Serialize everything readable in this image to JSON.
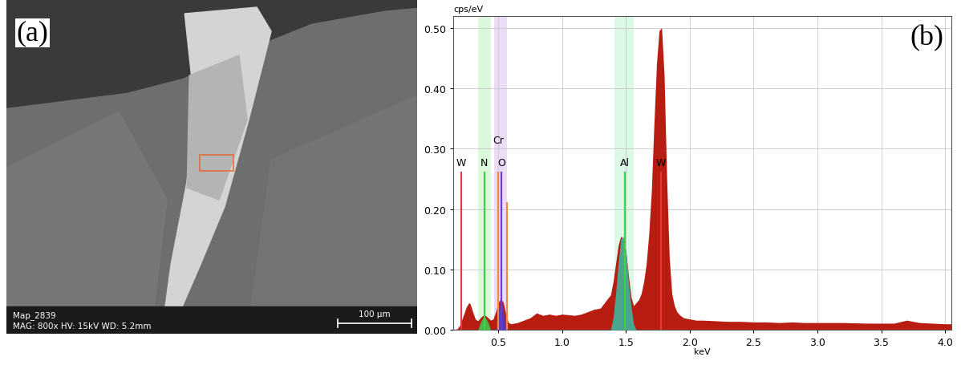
{
  "image_panel": {
    "panel_label": "(a)",
    "caption_lines": [
      "Map_2839",
      "MAG: 800x HV: 15kV WD: 5.2mm"
    ],
    "scale_bar": "100 µm"
  },
  "chart_data": {
    "type": "area",
    "panel_label": "(b)",
    "y_label": "cps/eV",
    "x_label": "keV",
    "xlim": [
      0.15,
      4.05
    ],
    "ylim": [
      0,
      0.52
    ],
    "xticks": [
      0.5,
      1.0,
      1.5,
      2.0,
      2.5,
      3.0,
      3.5,
      4.0
    ],
    "yticks": [
      {
        "value": 0.0,
        "label": "0.00"
      },
      {
        "value": 0.1,
        "label": "0.10"
      },
      {
        "value": 0.2,
        "label": "0.20"
      },
      {
        "value": 0.3,
        "label": "0.30"
      },
      {
        "value": 0.4,
        "label": "0.40"
      },
      {
        "value": 0.5,
        "label": "0.50"
      }
    ],
    "grid": true,
    "color": "#b81d12",
    "x": [
      0.15,
      0.18,
      0.2,
      0.22,
      0.25,
      0.27,
      0.28,
      0.3,
      0.32,
      0.34,
      0.36,
      0.38,
      0.4,
      0.42,
      0.44,
      0.46,
      0.48,
      0.5,
      0.52,
      0.54,
      0.56,
      0.58,
      0.6,
      0.65,
      0.7,
      0.75,
      0.8,
      0.85,
      0.9,
      0.95,
      1.0,
      1.05,
      1.1,
      1.15,
      1.2,
      1.25,
      1.3,
      1.35,
      1.38,
      1.4,
      1.42,
      1.44,
      1.46,
      1.48,
      1.5,
      1.52,
      1.54,
      1.56,
      1.58,
      1.6,
      1.62,
      1.64,
      1.66,
      1.68,
      1.7,
      1.72,
      1.74,
      1.76,
      1.78,
      1.8,
      1.82,
      1.84,
      1.86,
      1.88,
      1.9,
      1.92,
      1.95,
      2.0,
      2.05,
      2.1,
      2.2,
      2.3,
      2.4,
      2.5,
      2.6,
      2.7,
      2.8,
      2.9,
      3.0,
      3.2,
      3.4,
      3.6,
      3.7,
      3.8,
      4.0,
      4.05
    ],
    "values": [
      0.0,
      0.002,
      0.008,
      0.02,
      0.038,
      0.045,
      0.043,
      0.03,
      0.018,
      0.015,
      0.02,
      0.024,
      0.024,
      0.02,
      0.016,
      0.018,
      0.03,
      0.045,
      0.052,
      0.045,
      0.025,
      0.012,
      0.01,
      0.012,
      0.016,
      0.02,
      0.028,
      0.024,
      0.026,
      0.024,
      0.026,
      0.025,
      0.024,
      0.026,
      0.03,
      0.034,
      0.036,
      0.05,
      0.058,
      0.08,
      0.11,
      0.14,
      0.155,
      0.15,
      0.13,
      0.09,
      0.055,
      0.04,
      0.045,
      0.05,
      0.06,
      0.08,
      0.11,
      0.16,
      0.23,
      0.34,
      0.44,
      0.495,
      0.5,
      0.42,
      0.25,
      0.12,
      0.06,
      0.04,
      0.03,
      0.025,
      0.02,
      0.018,
      0.016,
      0.016,
      0.015,
      0.014,
      0.014,
      0.013,
      0.013,
      0.012,
      0.013,
      0.012,
      0.012,
      0.012,
      0.011,
      0.011,
      0.016,
      0.012,
      0.01,
      0.01
    ],
    "peak_fills": [
      {
        "color": "#3fb59c",
        "x": [
          1.38,
          1.4,
          1.42,
          1.44,
          1.46,
          1.48,
          1.5,
          1.52,
          1.54,
          1.56,
          1.58
        ],
        "values": [
          0.0,
          0.02,
          0.06,
          0.11,
          0.15,
          0.155,
          0.13,
          0.08,
          0.04,
          0.01,
          0.0
        ]
      },
      {
        "color": "#3cc850",
        "x": [
          0.34,
          0.36,
          0.38,
          0.4,
          0.42,
          0.44
        ],
        "values": [
          0.0,
          0.012,
          0.02,
          0.02,
          0.012,
          0.0
        ]
      },
      {
        "color": "#4b3cc8",
        "x": [
          0.48,
          0.5,
          0.52,
          0.54,
          0.56
        ],
        "values": [
          0.0,
          0.03,
          0.052,
          0.03,
          0.0
        ]
      }
    ],
    "bands": [
      {
        "x0": 0.34,
        "x1": 0.44,
        "color": "#dcf8dc"
      },
      {
        "x0": 0.47,
        "x1": 0.57,
        "color": "#ecdcf8"
      },
      {
        "x0": 1.41,
        "x1": 1.56,
        "color": "#dcf8e6"
      }
    ],
    "element_lines": [
      {
        "label": "W",
        "x": 0.21,
        "height": 0.26,
        "color": "#e8383d"
      },
      {
        "label": "N",
        "x": 0.39,
        "height": 0.26,
        "color": "#3cd24a"
      },
      {
        "label": "Cr",
        "x": 0.5,
        "height": 0.26,
        "color": "#f08c3c"
      },
      {
        "label": "O",
        "x": 0.525,
        "height": 0.26,
        "color": "#6a3cd2"
      },
      {
        "label": null,
        "x": 0.57,
        "height": 0.21,
        "color": "#f08c3c"
      },
      {
        "label": "Al",
        "x": 1.49,
        "height": 0.26,
        "color": "#3cd24a"
      },
      {
        "label": "W",
        "x": 1.775,
        "height": 0.26,
        "color": "#e8383d"
      }
    ]
  }
}
